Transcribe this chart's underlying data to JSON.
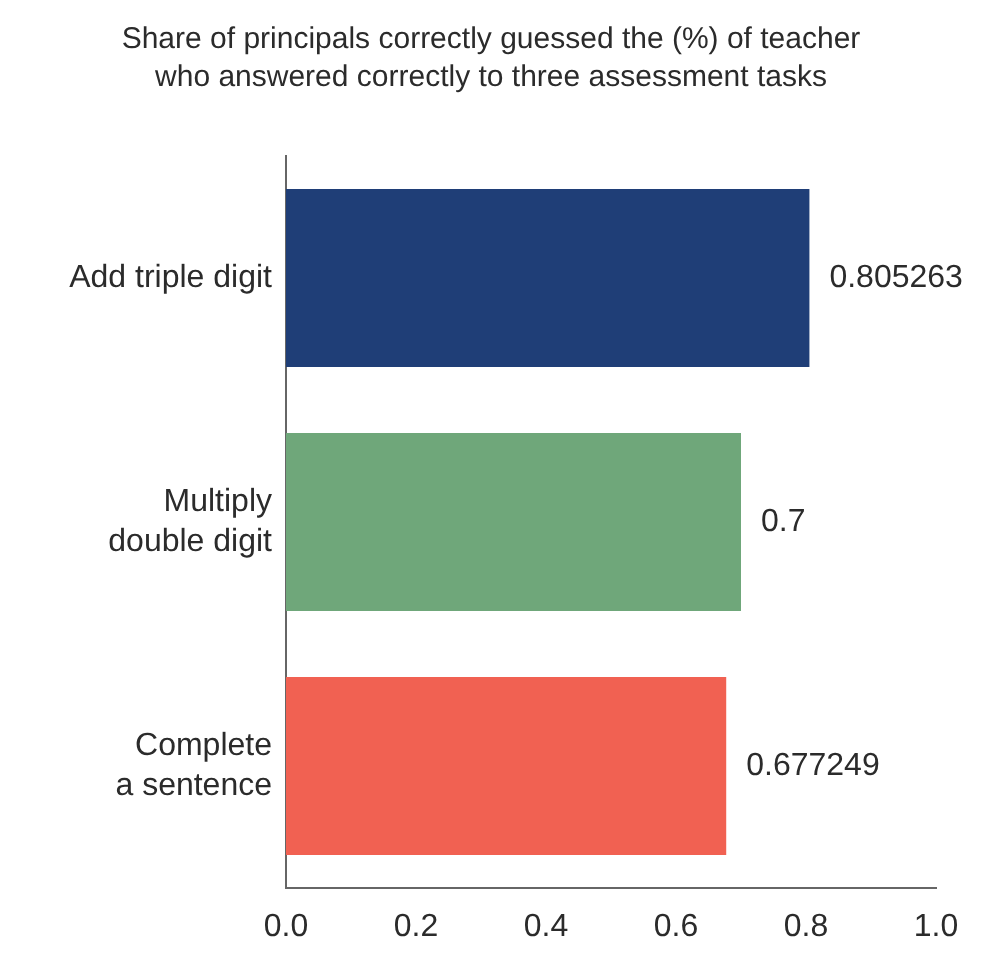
{
  "chart_data": {
    "type": "bar",
    "orientation": "horizontal",
    "title": "Share of principals correctly guessed the (%) of teacher who answered correctly to three assessment tasks",
    "categories": [
      "Add triple digit",
      "Multiply\ndouble digit",
      "Complete\na sentence"
    ],
    "values": [
      0.805263,
      0.7,
      0.677249
    ],
    "colors": [
      "#1f3e77",
      "#6fa77a",
      "#f16152"
    ],
    "xlim": [
      0,
      1
    ],
    "xticks": [
      {
        "value": 0,
        "label": "0.0"
      },
      {
        "value": 0.2,
        "label": "0.2"
      },
      {
        "value": 0.4,
        "label": "0.4"
      },
      {
        "value": 0.6,
        "label": "0.6"
      },
      {
        "value": 0.8,
        "label": "0.8"
      },
      {
        "value": 1,
        "label": "1.0"
      }
    ],
    "data_labels": true
  }
}
